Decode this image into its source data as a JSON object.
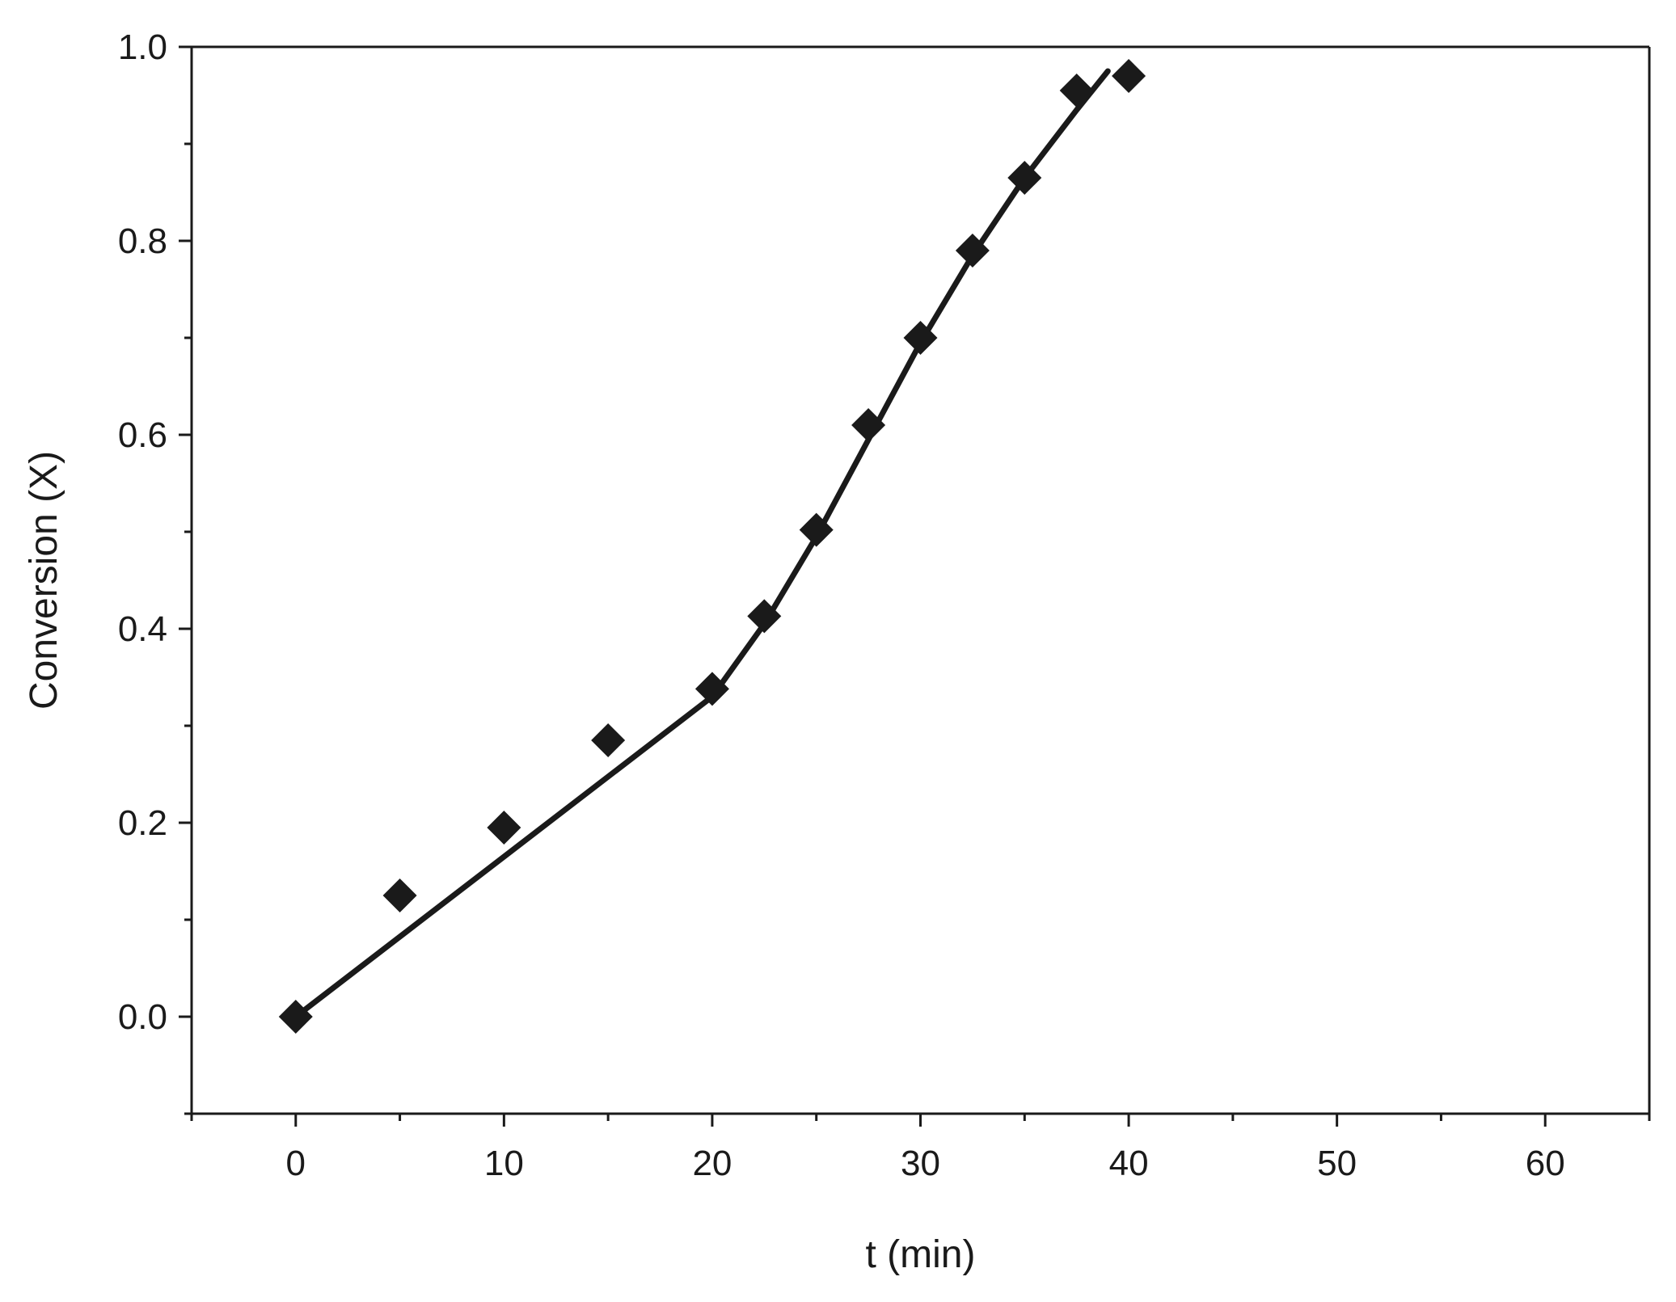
{
  "chart_data": {
    "type": "scatter",
    "title": "",
    "xlabel": "t (min)",
    "ylabel": "Conversion (X)",
    "xlim": [
      -5,
      65
    ],
    "ylim": [
      -0.1,
      1.0
    ],
    "x_ticks": [
      0,
      10,
      20,
      30,
      40,
      50,
      60
    ],
    "x_tick_labels": [
      "0",
      "10",
      "20",
      "30",
      "40",
      "50",
      "60"
    ],
    "y_ticks": [
      0.0,
      0.2,
      0.4,
      0.6,
      0.8,
      1.0
    ],
    "y_tick_labels": [
      "0.0",
      "0.2",
      "0.4",
      "0.6",
      "0.8",
      "1.0"
    ],
    "grid": false,
    "legend": "none",
    "colors": {
      "marker": "#1a1a1a",
      "line": "#1a1a1a",
      "axes": "#1a1a1a"
    },
    "series": [
      {
        "kind": "points",
        "marker": "diamond",
        "x": [
          0,
          5,
          10,
          15,
          20,
          22.5,
          25,
          27.5,
          30,
          32.5,
          35,
          37.5,
          40
        ],
        "y": [
          0.0,
          0.125,
          0.195,
          0.285,
          0.338,
          0.413,
          0.502,
          0.61,
          0.7,
          0.79,
          0.865,
          0.955,
          0.97
        ]
      },
      {
        "kind": "line",
        "x": [
          0,
          20,
          22.5,
          25,
          27.5,
          30,
          32.5,
          35,
          37.5,
          39
        ],
        "y": [
          0.0,
          0.33,
          0.405,
          0.495,
          0.595,
          0.695,
          0.785,
          0.865,
          0.935,
          0.975
        ]
      }
    ]
  }
}
